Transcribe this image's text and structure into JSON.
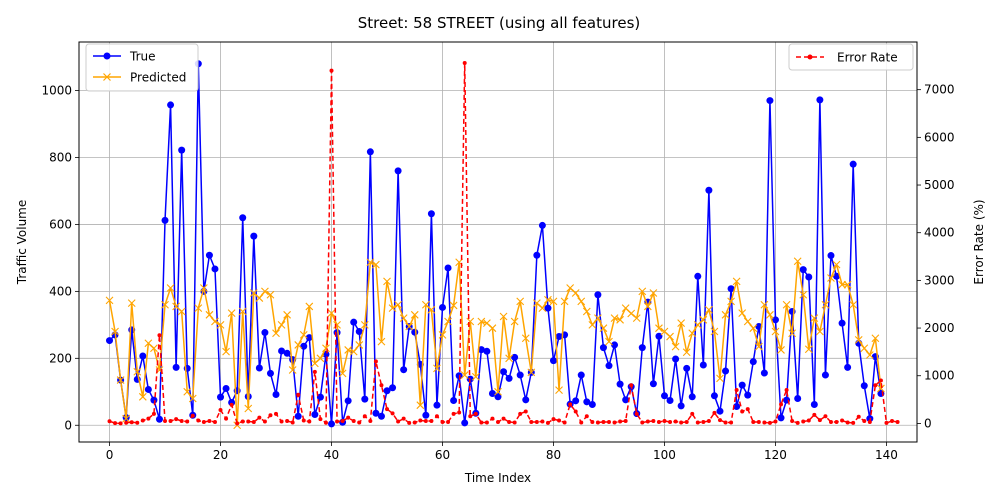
{
  "chart_data": {
    "type": "line",
    "title": "Street: 58 STREET (using all features)",
    "xlabel": "Time Index",
    "ylabel": "Traffic Volume",
    "y2label": "Error Rate (%)",
    "xlim": [
      -5.5,
      145.5
    ],
    "ylim": [
      -50,
      1145
    ],
    "y2lim": [
      -390,
      8000
    ],
    "x_ticks": [
      0,
      20,
      40,
      60,
      80,
      100,
      120,
      140
    ],
    "y_ticks": [
      0,
      200,
      400,
      600,
      800,
      1000
    ],
    "y2_ticks": [
      0,
      1000,
      2000,
      3000,
      4000,
      5000,
      6000,
      7000
    ],
    "grid": true,
    "legend_left": "upper-left",
    "legend_right": "upper-right",
    "series": [
      {
        "name": "True",
        "axis": "left",
        "color": "#0000ff",
        "marker": "circle",
        "values": [
          253,
          270,
          135,
          23,
          285,
          137,
          207,
          107,
          75,
          18,
          612,
          957,
          173,
          822,
          170,
          30,
          1080,
          400,
          508,
          467,
          84,
          110,
          68,
          103,
          620,
          86,
          565,
          171,
          277,
          155,
          92,
          222,
          215,
          196,
          27,
          236,
          262,
          32,
          84,
          212,
          4,
          277,
          9,
          73,
          308,
          280,
          78,
          817,
          36,
          27,
          103,
          112,
          760,
          166,
          295,
          278,
          182,
          30,
          632,
          60,
          352,
          470,
          74,
          148,
          7,
          138,
          36,
          226,
          221,
          95,
          85,
          160,
          140,
          203,
          150,
          76,
          158,
          508,
          597,
          350,
          193,
          265,
          270,
          63,
          73,
          150,
          70,
          62,
          390,
          232,
          178,
          240,
          123,
          76,
          115,
          35,
          232,
          368,
          124,
          266,
          88,
          74,
          198,
          58,
          170,
          85,
          445,
          180,
          702,
          88,
          42,
          162,
          408,
          56,
          120,
          90,
          190,
          295,
          156,
          970,
          315,
          22,
          75,
          340,
          80,
          465,
          443,
          62,
          972,
          150,
          507,
          445,
          305,
          173,
          780,
          245,
          118,
          20,
          205,
          95
        ]
      },
      {
        "name": "Predicted",
        "axis": "left",
        "color": "#ffa500",
        "marker": "x",
        "values": [
          373,
          280,
          135,
          20,
          365,
          160,
          85,
          245,
          230,
          165,
          360,
          410,
          355,
          340,
          100,
          80,
          350,
          410,
          330,
          310,
          300,
          220,
          335,
          0,
          340,
          50,
          395,
          380,
          400,
          390,
          275,
          300,
          330,
          165,
          240,
          270,
          355,
          185,
          200,
          230,
          335,
          300,
          155,
          225,
          220,
          240,
          300,
          487,
          480,
          250,
          430,
          350,
          360,
          320,
          295,
          330,
          60,
          360,
          345,
          170,
          270,
          310,
          358,
          487,
          150,
          310,
          145,
          310,
          305,
          290,
          100,
          325,
          200,
          310,
          370,
          260,
          158,
          365,
          350,
          375,
          370,
          105,
          370,
          410,
          395,
          370,
          340,
          300,
          320,
          290,
          250,
          320,
          315,
          350,
          334,
          320,
          400,
          355,
          395,
          290,
          280,
          265,
          235,
          305,
          218,
          275,
          300,
          315,
          345,
          280,
          140,
          330,
          370,
          430,
          335,
          310,
          290,
          235,
          360,
          330,
          280,
          225,
          360,
          275,
          490,
          390,
          227,
          320,
          280,
          360,
          440,
          480,
          420,
          420,
          360,
          255,
          230,
          210,
          260,
          110
        ]
      },
      {
        "name": "Error Rate",
        "axis": "right",
        "color": "#ff0000",
        "marker": "dot",
        "linestyle": "dashed",
        "values": [
          45,
          5,
          0,
          15,
          25,
          15,
          60,
          100,
          200,
          1850,
          50,
          50,
          90,
          50,
          40,
          160,
          60,
          30,
          50,
          30,
          280,
          100,
          390,
          0,
          40,
          40,
          30,
          120,
          40,
          170,
          200,
          40,
          50,
          20,
          600,
          60,
          40,
          1080,
          90,
          15,
          7400,
          40,
          50,
          120,
          50,
          20,
          150,
          50,
          1300,
          800,
          300,
          210,
          40,
          100,
          10,
          20,
          60,
          50,
          50,
          150,
          30,
          30,
          200,
          230,
          7560,
          150,
          200,
          20,
          20,
          100,
          30,
          100,
          30,
          20,
          200,
          250,
          30,
          30,
          40,
          10,
          90,
          60,
          20,
          400,
          250,
          20,
          150,
          30,
          20,
          30,
          30,
          20,
          40,
          50,
          800,
          200,
          20,
          40,
          50,
          30,
          50,
          30,
          40,
          20,
          30,
          200,
          20,
          30,
          50,
          220,
          70,
          20,
          20,
          700,
          250,
          300,
          30,
          30,
          20,
          10,
          40,
          400,
          700,
          50,
          10,
          40,
          60,
          180,
          70,
          150,
          30,
          30,
          60,
          20,
          10,
          140,
          50,
          30,
          800,
          900,
          10,
          50,
          30
        ]
      }
    ]
  }
}
